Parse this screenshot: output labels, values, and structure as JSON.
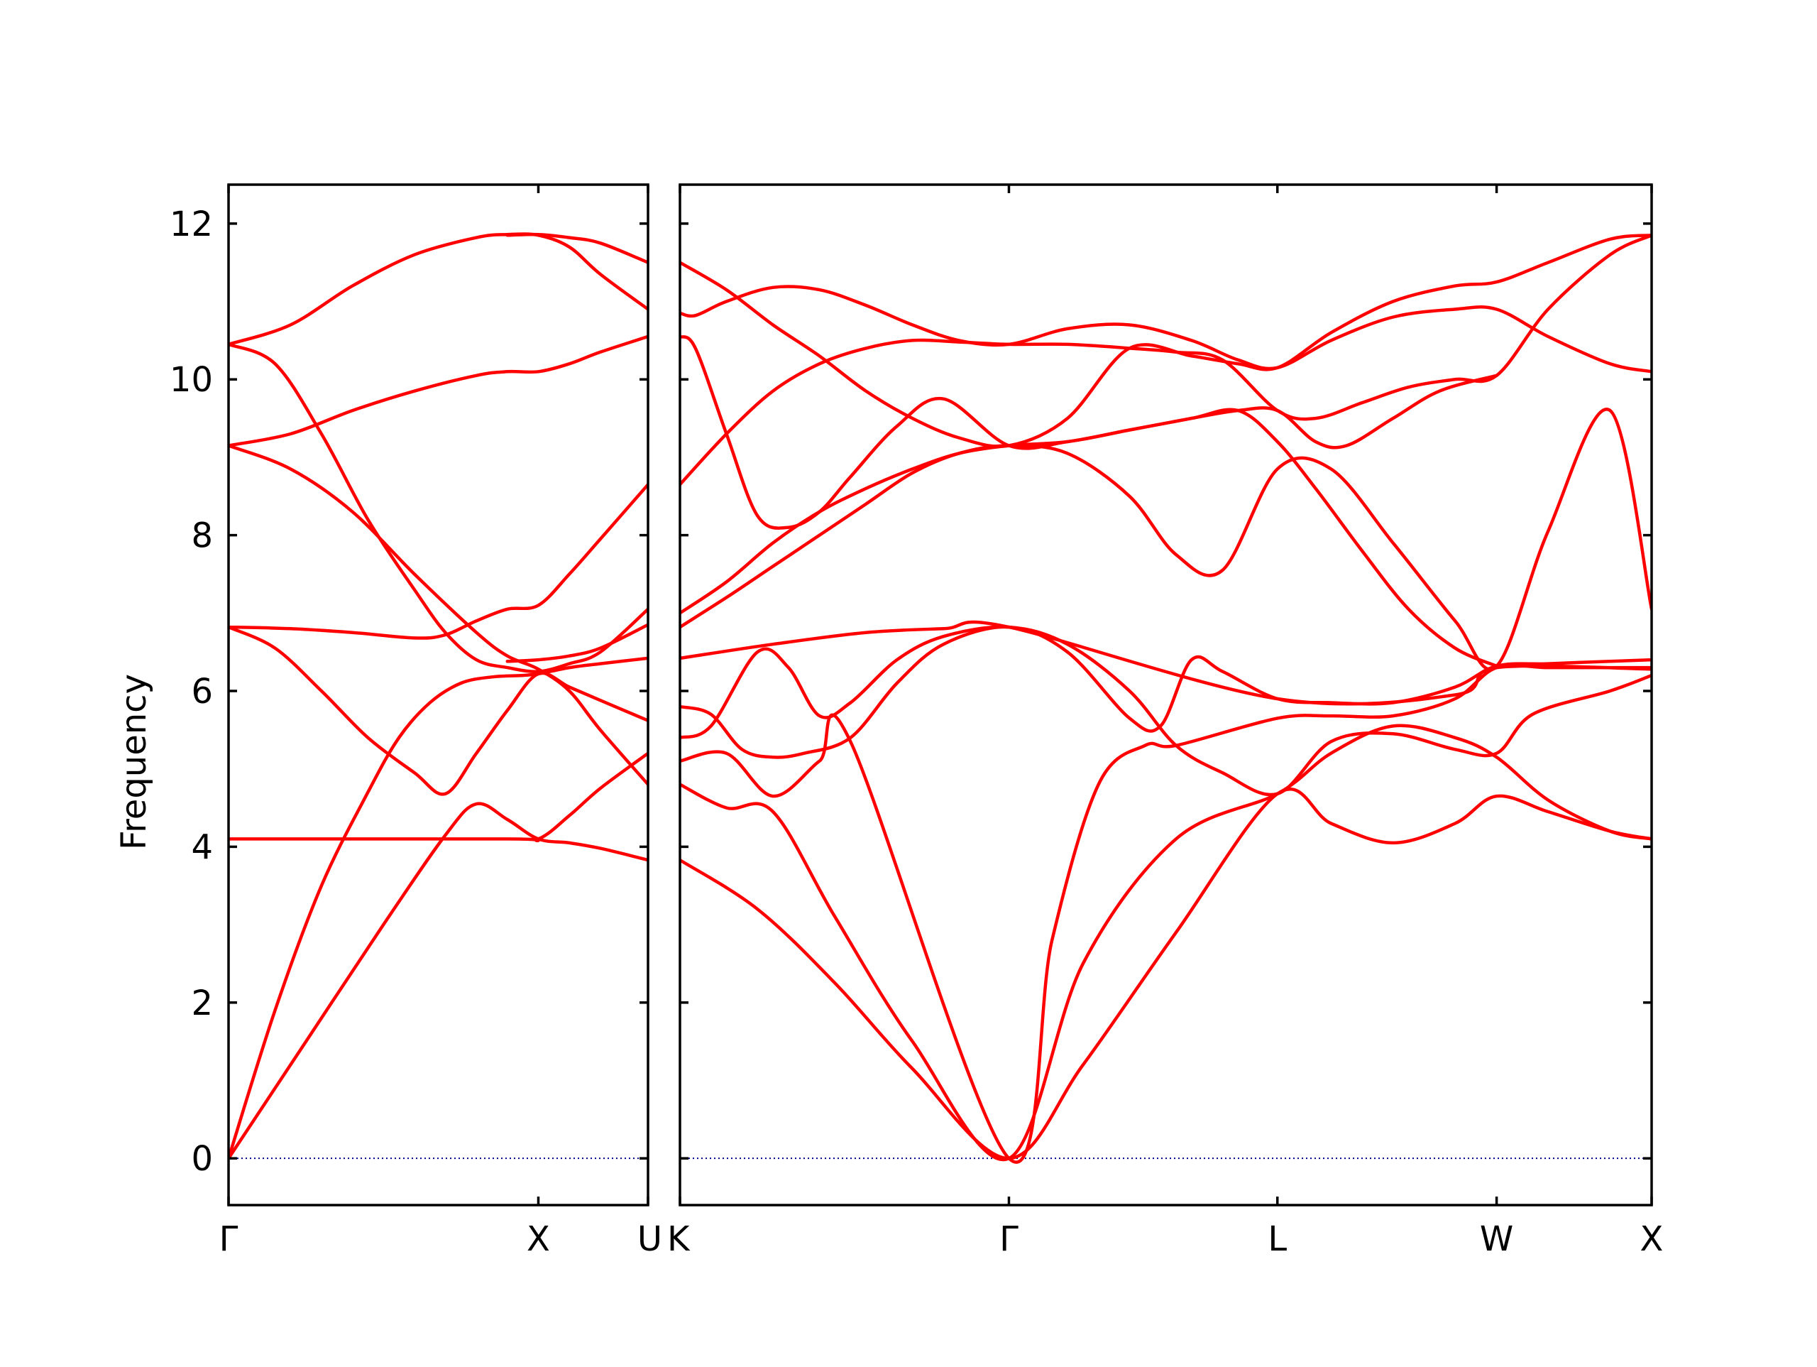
{
  "colors": {
    "band": "#ff0000",
    "zero_line": "#00008b",
    "axes": "#000000",
    "background": "#ffffff"
  },
  "chart_data": {
    "type": "line",
    "title": "",
    "ylabel": "Frequency",
    "ylim": [
      -0.6,
      12.5
    ],
    "yticks": [
      0,
      2,
      4,
      6,
      8,
      10,
      12
    ],
    "grid": false,
    "zero_line": {
      "y": 0,
      "style": "dotted"
    },
    "panels": [
      {
        "path": "Γ-X-U",
        "x_ticks": [
          {
            "pos": 0,
            "label": "Γ"
          },
          {
            "pos": 1,
            "label": "X"
          },
          {
            "pos": 1.354,
            "label": "U"
          }
        ],
        "xlim": [
          0,
          1.354
        ],
        "series": [
          {
            "x": [
              0,
              0.25,
              0.5,
              0.7,
              0.8,
              0.9,
              1.0,
              1.1,
              1.2,
              1.354
            ],
            "y": [
              0,
              1.5,
              3.0,
              4.15,
              4.55,
              4.35,
              4.1,
              4.05,
              3.98,
              3.83
            ]
          },
          {
            "x": [
              0,
              0.15,
              0.3,
              0.45,
              0.55,
              0.65,
              0.75,
              0.85,
              0.95,
              1.0,
              1.1,
              1.2,
              1.354
            ],
            "y": [
              0,
              1.9,
              3.5,
              4.7,
              5.4,
              5.85,
              6.1,
              6.18,
              6.2,
              6.22,
              6.3,
              6.35,
              6.42
            ]
          },
          {
            "x": [
              0,
              0.15,
              0.3,
              0.45,
              0.6,
              0.7,
              0.8,
              0.9,
              1.0,
              1.1,
              1.2,
              1.354
            ],
            "y": [
              6.82,
              6.55,
              6.0,
              5.4,
              4.95,
              4.68,
              5.2,
              5.75,
              6.22,
              6.05,
              5.88,
              5.62
            ]
          },
          {
            "x": [
              0,
              0.2,
              0.4,
              0.6,
              0.7,
              0.8,
              0.9,
              1.0,
              1.1,
              1.2,
              1.354
            ],
            "y": [
              6.82,
              6.8,
              6.75,
              6.68,
              6.72,
              6.9,
              7.05,
              7.1,
              7.5,
              7.95,
              8.65
            ]
          },
          {
            "x": [
              0,
              0.2,
              0.4,
              0.6,
              0.8,
              0.9,
              1.0,
              1.1,
              1.2,
              1.354
            ],
            "y": [
              9.15,
              8.85,
              8.3,
              7.5,
              6.75,
              6.45,
              6.28,
              6.0,
              5.5,
              4.8
            ]
          },
          {
            "x": [
              0,
              0.15,
              0.3,
              0.45,
              0.6,
              0.7,
              0.8,
              0.9,
              1.0,
              1.1,
              1.2,
              1.354
            ],
            "y": [
              10.45,
              10.2,
              9.3,
              8.2,
              7.3,
              6.75,
              6.4,
              6.3,
              6.25,
              6.35,
              6.5,
              7.05
            ]
          },
          {
            "x": [
              0,
              0.2,
              0.4,
              0.6,
              0.8,
              0.9,
              1.0,
              1.1,
              1.2,
              1.354
            ],
            "y": [
              9.15,
              9.3,
              9.6,
              9.85,
              10.05,
              10.1,
              10.1,
              10.2,
              10.35,
              10.55
            ]
          },
          {
            "x": [
              0,
              0.2,
              0.4,
              0.6,
              0.8,
              0.9,
              1.0,
              1.1,
              1.2,
              1.354
            ],
            "y": [
              10.45,
              10.7,
              11.2,
              11.6,
              11.82,
              11.86,
              11.85,
              11.7,
              11.35,
              10.9
            ]
          },
          {
            "x": [
              0,
              0.9,
              1.0,
              1.1,
              1.2,
              1.354
            ],
            "y": [
              4.1,
              4.1,
              4.1,
              4.4,
              4.75,
              5.2
            ]
          },
          {
            "x": [
              0.9,
              1.0,
              1.1,
              1.2,
              1.354
            ],
            "y": [
              6.38,
              6.4,
              6.45,
              6.55,
              6.85
            ]
          },
          {
            "x": [
              0.9,
              1.0,
              1.1,
              1.2,
              1.354
            ],
            "y": [
              11.85,
              11.86,
              11.82,
              11.75,
              11.5
            ]
          }
        ]
      },
      {
        "path": "K-Γ-L-W-X",
        "x_ticks": [
          {
            "pos": 0,
            "label": "K"
          },
          {
            "pos": 1.061,
            "label": "Γ"
          },
          {
            "pos": 1.927,
            "label": "L"
          },
          {
            "pos": 2.634,
            "label": "W"
          },
          {
            "pos": 3.134,
            "label": "X"
          }
        ],
        "xlim": [
          0,
          3.134
        ],
        "series": [
          {
            "x": [
              0,
              0.25,
              0.5,
              0.75,
              1.061,
              1.3,
              1.6,
              1.927,
              2.1,
              2.3,
              2.5,
              2.634,
              2.8,
              3.0,
              3.134
            ],
            "y": [
              3.83,
              3.2,
              2.25,
              1.15,
              0,
              1.2,
              2.9,
              4.68,
              4.3,
              4.05,
              4.3,
              4.65,
              4.45,
              4.2,
              4.1
            ]
          },
          {
            "x": [
              0,
              0.15,
              0.3,
              0.5,
              0.75,
              1.061,
              1.3,
              1.6,
              1.927,
              2.1,
              2.3,
              2.5,
              2.634,
              2.8,
              3.0,
              3.134
            ],
            "y": [
              4.8,
              4.5,
              4.45,
              3.1,
              1.5,
              0,
              2.5,
              4.1,
              4.68,
              5.2,
              5.55,
              5.4,
              5.15,
              4.6,
              4.2,
              4.1
            ]
          },
          {
            "x": [
              0,
              0.15,
              0.3,
              0.45,
              0.55,
              1.061,
              1.2,
              1.35,
              1.5,
              1.6,
              1.927,
              2.1,
              2.3,
              2.5,
              2.634,
              2.8,
              3.0,
              3.134
            ],
            "y": [
              5.1,
              5.2,
              4.65,
              5.1,
              5.35,
              0,
              2.8,
              4.8,
              5.3,
              5.3,
              5.65,
              5.68,
              5.68,
              5.9,
              6.3,
              6.3,
              6.3,
              6.3
            ]
          },
          {
            "x": [
              0,
              0.1,
              0.2,
              0.3,
              0.4,
              0.55,
              0.7,
              0.85,
              1.061,
              1.25,
              1.45,
              1.55,
              1.65,
              1.75,
              1.927,
              2.1,
              2.3,
              2.5,
              2.634,
              2.8,
              3.0,
              3.134
            ],
            "y": [
              5.8,
              5.7,
              5.25,
              5.15,
              5.2,
              5.4,
              6.1,
              6.6,
              6.82,
              6.5,
              5.65,
              5.55,
              6.4,
              6.25,
              5.9,
              5.85,
              5.85,
              6.05,
              6.32,
              6.35,
              6.38,
              6.4
            ]
          },
          {
            "x": [
              0,
              0.1,
              0.25,
              0.35,
              0.45,
              0.55,
              0.7,
              0.85,
              1.061,
              1.25,
              1.45,
              1.6,
              1.75,
              1.927,
              2.1,
              2.3,
              2.5,
              2.634,
              2.75,
              3.0,
              3.134
            ],
            "y": [
              5.4,
              5.55,
              6.5,
              6.3,
              5.68,
              5.85,
              6.4,
              6.7,
              6.82,
              6.6,
              6.0,
              5.3,
              4.95,
              4.68,
              5.35,
              5.45,
              5.25,
              5.2,
              5.7,
              6.0,
              6.2
            ]
          },
          {
            "x": [
              0,
              0.3,
              0.6,
              0.85,
              1.061,
              1.927,
              2.5,
              2.634,
              3.134
            ],
            "y": [
              6.42,
              6.6,
              6.75,
              6.8,
              6.82,
              5.9,
              5.95,
              6.3,
              6.28
            ]
          },
          {
            "x": [
              0,
              0.15,
              0.3,
              0.45,
              0.6,
              0.75,
              0.9,
              1.061,
              1.25,
              1.45,
              1.6,
              1.75,
              1.927,
              2.1,
              2.3,
              2.5,
              2.634,
              2.8,
              3.0,
              3.134
            ],
            "y": [
              6.82,
              7.2,
              7.6,
              8.0,
              8.4,
              8.8,
              9.05,
              9.15,
              9.05,
              8.5,
              7.75,
              7.55,
              8.85,
              8.85,
              7.9,
              6.9,
              6.32,
              8.05,
              9.6,
              7.05
            ]
          },
          {
            "x": [
              0,
              0.15,
              0.3,
              0.45,
              0.6,
              0.75,
              0.9,
              1.061,
              1.25,
              1.45,
              1.65,
              1.8,
              1.927,
              2.05,
              2.2,
              2.35,
              2.5,
              2.634
            ],
            "y": [
              7.0,
              7.4,
              7.9,
              8.3,
              8.6,
              8.85,
              9.05,
              9.15,
              9.2,
              9.35,
              9.5,
              9.6,
              9.2,
              8.6,
              7.8,
              7.05,
              6.55,
              6.32
            ]
          },
          {
            "x": [
              0,
              0.15,
              0.3,
              0.45,
              0.6,
              0.75,
              0.9,
              1.061,
              1.25,
              1.45,
              1.6,
              1.75,
              1.927,
              2.05,
              2.2,
              2.35,
              2.5,
              2.634,
              2.8,
              3.0,
              3.134
            ],
            "y": [
              8.65,
              9.3,
              9.85,
              10.2,
              10.4,
              10.5,
              10.48,
              10.45,
              10.45,
              10.4,
              10.35,
              10.25,
              9.6,
              9.5,
              9.7,
              9.9,
              10.0,
              10.05,
              10.9,
              11.6,
              11.85
            ]
          },
          {
            "x": [
              0,
              0.05,
              0.15,
              0.25,
              0.35,
              0.45,
              0.55,
              0.7,
              0.85,
              1.061,
              1.25,
              1.45,
              1.65,
              1.8,
              1.927,
              2.05,
              2.15,
              2.3,
              2.45,
              2.634
            ],
            "y": [
              10.55,
              10.4,
              9.3,
              8.25,
              8.1,
              8.3,
              8.75,
              9.4,
              9.75,
              9.15,
              9.2,
              9.35,
              9.5,
              9.6,
              9.6,
              9.2,
              9.15,
              9.5,
              9.85,
              10.05
            ]
          },
          {
            "x": [
              0,
              0.05,
              0.15,
              0.3,
              0.45,
              0.6,
              0.75,
              0.9,
              1.061,
              1.25,
              1.45,
              1.65,
              1.8,
              1.927,
              2.1,
              2.3,
              2.5,
              2.634,
              2.8,
              3.0,
              3.134
            ],
            "y": [
              10.85,
              10.82,
              11.0,
              11.18,
              11.15,
              10.95,
              10.7,
              10.5,
              10.45,
              10.65,
              10.7,
              10.5,
              10.25,
              10.15,
              10.5,
              10.8,
              10.9,
              10.9,
              10.55,
              10.2,
              10.1
            ]
          },
          {
            "x": [
              0,
              0.15,
              0.3,
              0.45,
              0.6,
              0.75,
              0.9,
              1.061,
              1.25,
              1.45,
              1.65,
              1.8,
              1.927,
              2.1,
              2.3,
              2.5,
              2.634,
              2.8,
              3.0,
              3.134
            ],
            "y": [
              11.5,
              11.15,
              10.7,
              10.3,
              9.85,
              9.5,
              9.25,
              9.15,
              9.5,
              10.4,
              10.3,
              10.2,
              10.15,
              10.6,
              11.0,
              11.2,
              11.25,
              11.5,
              11.8,
              11.85
            ]
          }
        ]
      }
    ]
  }
}
